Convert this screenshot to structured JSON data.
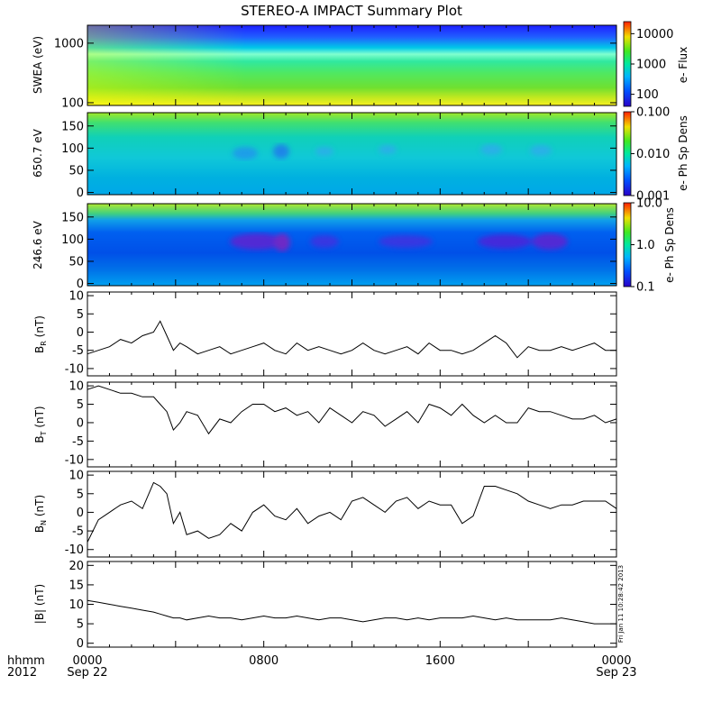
{
  "title": "STEREO-A IMPACT Summary Plot",
  "time_axis": {
    "ticks": [
      {
        "hour": 0,
        "line1": "0000",
        "line2": "Sep 22"
      },
      {
        "hour": 8,
        "line1": "0800",
        "line2": ""
      },
      {
        "hour": 16,
        "line1": "1600",
        "line2": ""
      },
      {
        "hour": 24,
        "line1": "0000",
        "line2": "Sep 23"
      }
    ],
    "left_label_1": "hhmm",
    "left_label_2": "2012",
    "range_hours": [
      0,
      24
    ]
  },
  "timestamp_note": "Fri Jan 11 10:28:42 2013",
  "colors": {
    "line": "#000000",
    "background": "#ffffff"
  },
  "chart_data": [
    {
      "type": "heatmap",
      "ylabel": "SWEA (eV)",
      "yscale": "log",
      "ylim": [
        90,
        2000
      ],
      "yticks": [
        100,
        1000
      ],
      "yticklabels": [
        "100",
        "1000"
      ],
      "colorbar": {
        "label": "e- Flux",
        "scale": "log",
        "range": [
          40,
          25000
        ],
        "ticks": [
          100,
          1000,
          10000
        ],
        "ticklabels": [
          "100",
          "1000",
          "10000"
        ]
      }
    },
    {
      "type": "heatmap",
      "ylabel": "650.7 eV",
      "ylim": [
        -5,
        180
      ],
      "yticks": [
        0,
        50,
        100,
        150
      ],
      "yticklabels": [
        "0",
        "50",
        "100",
        "150"
      ],
      "colorbar": {
        "label": "e- Ph Sp Dens",
        "scale": "log",
        "range": [
          0.001,
          0.1
        ],
        "ticks": [
          0.001,
          0.01,
          0.1
        ],
        "ticklabels": [
          "0.001",
          "0.010",
          "0.100"
        ]
      }
    },
    {
      "type": "heatmap",
      "ylabel": "246.6 eV",
      "ylim": [
        -5,
        180
      ],
      "yticks": [
        0,
        50,
        100,
        150
      ],
      "yticklabels": [
        "0",
        "50",
        "100",
        "150"
      ],
      "colorbar": {
        "label": "e- Ph Sp Dens",
        "scale": "log",
        "range": [
          0.1,
          10
        ],
        "ticks": [
          0.1,
          1,
          10
        ],
        "ticklabels": [
          "0.1",
          "1.0",
          "10.0"
        ]
      }
    },
    {
      "type": "line",
      "ylabel_main": "B",
      "ylabel_sub": "R",
      "ylabel_unit": " (nT)",
      "ylim": [
        -12,
        11
      ],
      "yticks": [
        -10,
        -5,
        0,
        5,
        10
      ],
      "x": [
        0,
        0.5,
        1,
        1.5,
        2,
        2.5,
        3,
        3.3,
        3.6,
        3.9,
        4.2,
        4.5,
        5,
        5.5,
        6,
        6.5,
        7,
        7.5,
        8,
        8.5,
        9,
        9.5,
        10,
        10.5,
        11,
        11.5,
        12,
        12.5,
        13,
        13.5,
        14,
        14.5,
        15,
        15.5,
        16,
        16.5,
        17,
        17.5,
        18,
        18.5,
        19,
        19.5,
        20,
        20.5,
        21,
        21.5,
        22,
        22.5,
        23,
        23.5,
        24
      ],
      "y": [
        -6,
        -5,
        -4,
        -2,
        -3,
        -1,
        0,
        3,
        -1,
        -5,
        -3,
        -4,
        -6,
        -5,
        -4,
        -6,
        -5,
        -4,
        -3,
        -5,
        -6,
        -3,
        -5,
        -4,
        -5,
        -6,
        -5,
        -3,
        -5,
        -6,
        -5,
        -4,
        -6,
        -3,
        -5,
        -5,
        -6,
        -5,
        -3,
        -1,
        -3,
        -7,
        -4,
        -5,
        -5,
        -4,
        -5,
        -4,
        -3,
        -5,
        -5
      ]
    },
    {
      "type": "line",
      "ylabel_main": "B",
      "ylabel_sub": "T",
      "ylabel_unit": " (nT)",
      "ylim": [
        -12,
        11
      ],
      "yticks": [
        -10,
        -5,
        0,
        5,
        10
      ],
      "x": [
        0,
        0.5,
        1,
        1.5,
        2,
        2.5,
        3,
        3.3,
        3.6,
        3.9,
        4.2,
        4.5,
        5,
        5.5,
        6,
        6.5,
        7,
        7.5,
        8,
        8.5,
        9,
        9.5,
        10,
        10.5,
        11,
        11.5,
        12,
        12.5,
        13,
        13.5,
        14,
        14.5,
        15,
        15.5,
        16,
        16.5,
        17,
        17.5,
        18,
        18.5,
        19,
        19.5,
        20,
        20.5,
        21,
        21.5,
        22,
        22.5,
        23,
        23.5,
        24
      ],
      "y": [
        9,
        10,
        9,
        8,
        8,
        7,
        7,
        5,
        3,
        -2,
        0,
        3,
        2,
        -3,
        1,
        0,
        3,
        5,
        5,
        3,
        4,
        2,
        3,
        0,
        4,
        2,
        0,
        3,
        2,
        -1,
        1,
        3,
        0,
        5,
        4,
        2,
        5,
        2,
        0,
        2,
        0,
        0,
        4,
        3,
        3,
        2,
        1,
        1,
        2,
        0,
        1
      ]
    },
    {
      "type": "line",
      "ylabel_main": "B",
      "ylabel_sub": "N",
      "ylabel_unit": " (nT)",
      "ylim": [
        -12,
        11
      ],
      "yticks": [
        -10,
        -5,
        0,
        5,
        10
      ],
      "x": [
        0,
        0.5,
        1,
        1.5,
        2,
        2.5,
        3,
        3.3,
        3.6,
        3.9,
        4.2,
        4.5,
        5,
        5.5,
        6,
        6.5,
        7,
        7.5,
        8,
        8.5,
        9,
        9.5,
        10,
        10.5,
        11,
        11.5,
        12,
        12.5,
        13,
        13.5,
        14,
        14.5,
        15,
        15.5,
        16,
        16.5,
        17,
        17.5,
        18,
        18.5,
        19,
        19.5,
        20,
        20.5,
        21,
        21.5,
        22,
        22.5,
        23,
        23.5,
        24
      ],
      "y": [
        -8,
        -2,
        0,
        2,
        3,
        1,
        8,
        7,
        5,
        -3,
        0,
        -6,
        -5,
        -7,
        -6,
        -3,
        -5,
        0,
        2,
        -1,
        -2,
        1,
        -3,
        -1,
        0,
        -2,
        3,
        4,
        2,
        0,
        3,
        4,
        1,
        3,
        2,
        2,
        -3,
        -1,
        7,
        7,
        6,
        5,
        3,
        2,
        1,
        2,
        2,
        3,
        3,
        3,
        1
      ]
    },
    {
      "type": "line",
      "ylabel": "|B| (nT)",
      "ylim": [
        -1,
        21
      ],
      "yticks": [
        0,
        5,
        10,
        15,
        20
      ],
      "x": [
        0,
        0.5,
        1,
        1.5,
        2,
        2.5,
        3,
        3.3,
        3.6,
        3.9,
        4.2,
        4.5,
        5,
        5.5,
        6,
        6.5,
        7,
        7.5,
        8,
        8.5,
        9,
        9.5,
        10,
        10.5,
        11,
        11.5,
        12,
        12.5,
        13,
        13.5,
        14,
        14.5,
        15,
        15.5,
        16,
        16.5,
        17,
        17.5,
        18,
        18.5,
        19,
        19.5,
        20,
        20.5,
        21,
        21.5,
        22,
        22.5,
        23,
        23.5,
        24
      ],
      "y": [
        11,
        10.5,
        10,
        9.5,
        9,
        8.5,
        8,
        7.5,
        7,
        6.5,
        6.5,
        6,
        6.5,
        7,
        6.5,
        6.5,
        6,
        6.5,
        7,
        6.5,
        6.5,
        7,
        6.5,
        6,
        6.5,
        6.5,
        6,
        5.5,
        6,
        6.5,
        6.5,
        6,
        6.5,
        6,
        6.5,
        6.5,
        6.5,
        7,
        6.5,
        6,
        6.5,
        6,
        6,
        6,
        6,
        6.5,
        6,
        5.5,
        5,
        5,
        5
      ]
    }
  ]
}
